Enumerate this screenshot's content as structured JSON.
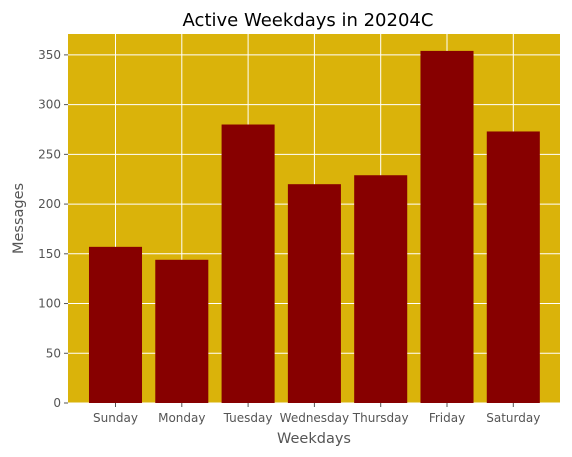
{
  "chart_data": {
    "type": "bar",
    "title": "Active Weekdays in 20204C",
    "xlabel": "Weekdays",
    "ylabel": "Messages",
    "categories": [
      "Sunday",
      "Monday",
      "Tuesday",
      "Wednesday",
      "Thursday",
      "Friday",
      "Saturday"
    ],
    "values": [
      157,
      144,
      280,
      220,
      229,
      354,
      273
    ],
    "ylim": [
      0,
      371
    ],
    "yticks": [
      0,
      50,
      100,
      150,
      200,
      250,
      300,
      350
    ],
    "grid": true,
    "legend": "none",
    "colors": {
      "plot_background": "#dab30a",
      "bar": "#870000",
      "grid": "#ffffff",
      "text": "#555555",
      "title": "#000000"
    }
  }
}
